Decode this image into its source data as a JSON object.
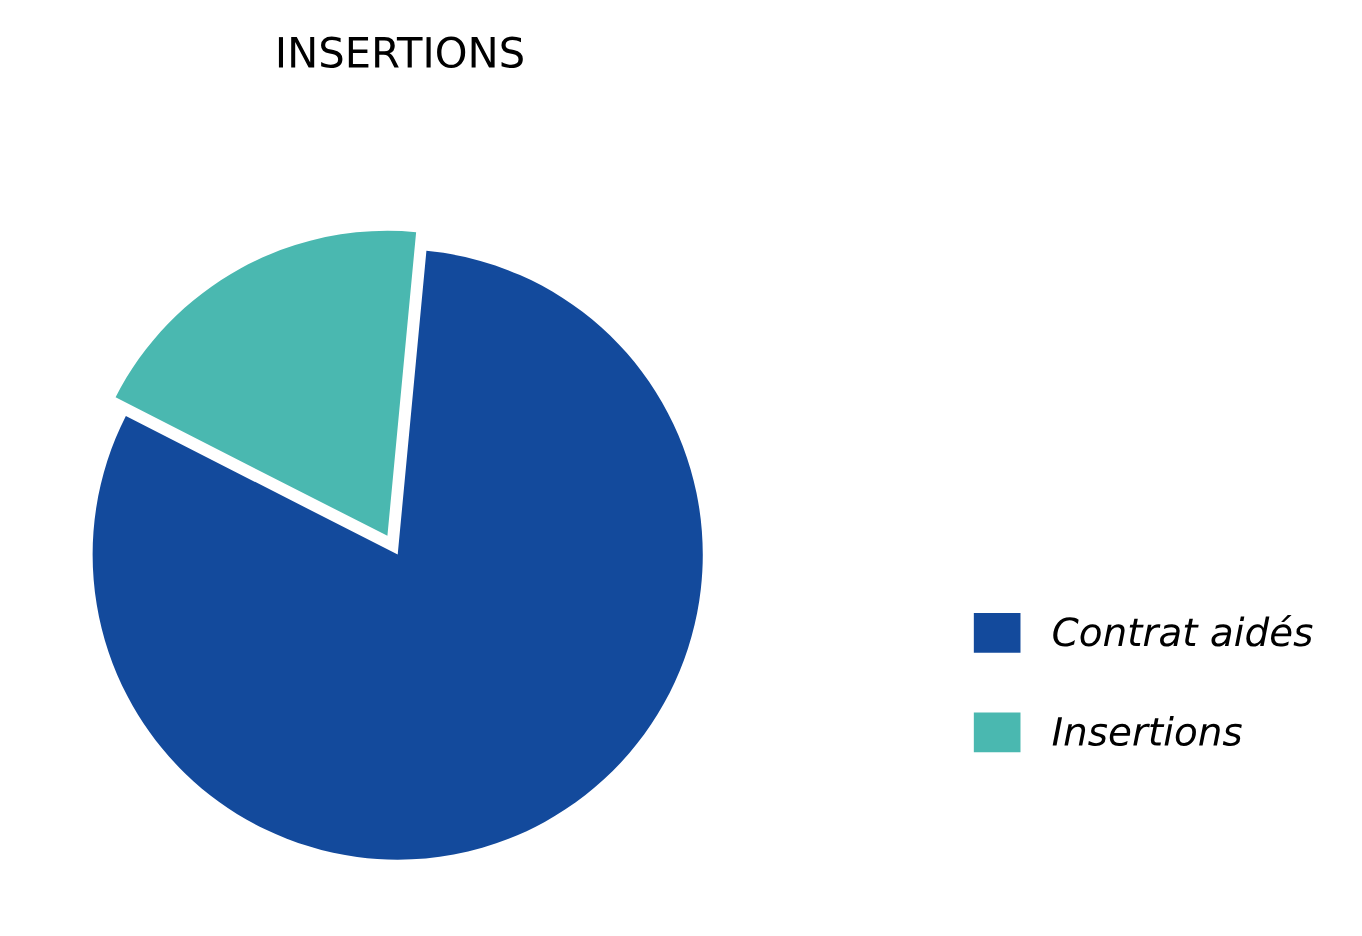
{
  "chart_data": {
    "type": "pie",
    "title": "INSERTIONS",
    "categories": [
      "Contrat aidés",
      "Insertions"
    ],
    "values": [
      81,
      19
    ],
    "colors": [
      "#134a9c",
      "#4ab8b0"
    ],
    "legend": "right"
  }
}
